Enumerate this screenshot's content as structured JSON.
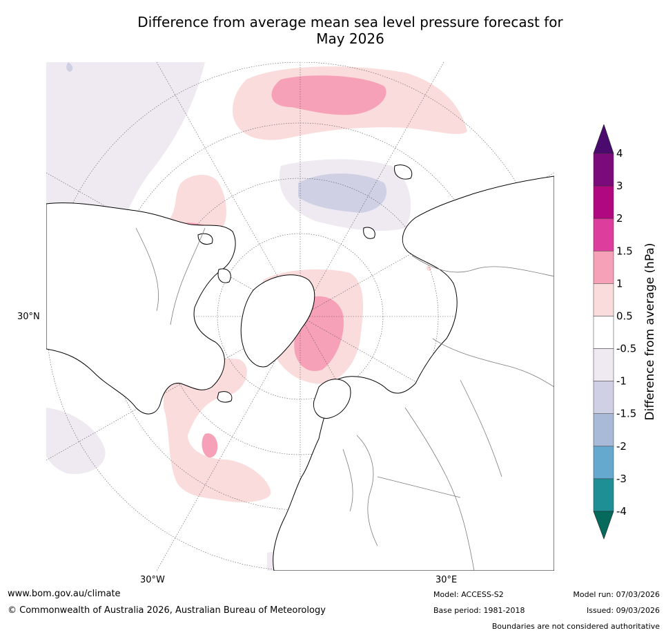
{
  "title": {
    "line1": "Difference from average mean sea level pressure forecast for",
    "line2": "May 2026"
  },
  "map": {
    "labels": {
      "lat_30n": "30°N",
      "lon_30w": "30°W",
      "lon_30e": "30°E"
    }
  },
  "colorbar": {
    "axis_label": "Difference from average (hPa)",
    "ticks": [
      "4",
      "3",
      "2",
      "1.5",
      "1",
      "0.5",
      "-0.5",
      "-1",
      "-1.5",
      "-2",
      "-3",
      "-4"
    ],
    "colors": {
      "above_max": "#4a0a6e",
      "c_3_4": "#7b0a7a",
      "c_2_3": "#b0087e",
      "c_15_2": "#dd3d9c",
      "c_1_15": "#f7a1b8",
      "c_05_1": "#fbdcdc",
      "c_n05_05": "#ffffff",
      "c_n1_n05": "#efe9f2",
      "c_n15_n1": "#cfd0e4",
      "c_n2_n15": "#a8bad8",
      "c_n3_n2": "#65a9cf",
      "c_n4_n3": "#1f8f96",
      "below_min": "#056a5c"
    }
  },
  "footer": {
    "website": "www.bom.gov.au/climate",
    "copyright": "© Commonwealth of Australia 2026, Australian Bureau of Meteorology",
    "model": "Model: ACCESS-S2",
    "base_period": "Base period: 1981-2018",
    "model_run": "Model run: 07/03/2026",
    "issued": "Issued: 09/03/2026",
    "disclaimer": "Boundaries are not considered authoritative"
  }
}
